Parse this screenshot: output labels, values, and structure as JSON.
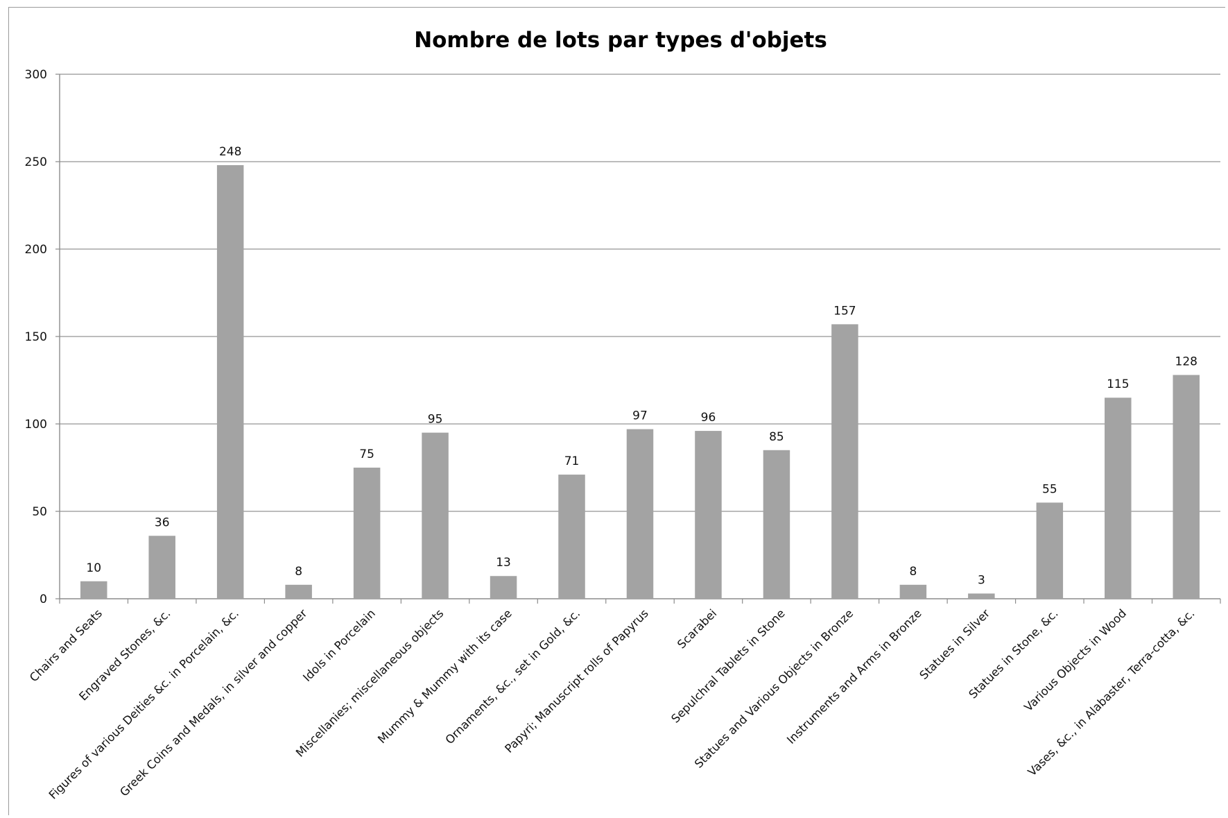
{
  "chart_data": {
    "type": "bar",
    "title": "Nombre de lots par types d'objets",
    "xlabel": "",
    "ylabel": "",
    "ylim": [
      0,
      300
    ],
    "yticks": [
      0,
      50,
      100,
      150,
      200,
      250,
      300
    ],
    "grid": true,
    "legend": "none",
    "bar_color": "#a3a3a3",
    "grid_color": "#a6a6a6",
    "categories": [
      "Chairs and Seats",
      "Engraved Stones, &c.",
      "Figures of various Deities &c. in Porcelain, &c.",
      "Greek Coins and Medals, in silver and copper",
      "Idols in Porcelain",
      "Miscellanies; miscellaneous objects",
      "Mummy & Mummy with its case",
      "Ornaments, &c., set in Gold, &c.",
      "Papyri; Manuscript rolls of Papyrus",
      "Scarabei",
      "Sepulchral Tablets in Stone",
      "Statues and Various Objects in Bronze",
      "Instruments and Arms in Bronze",
      "Statues in Silver",
      "Statues in  Stone, &c.",
      "Various Objects in Wood",
      "Vases, &c., in Alabaster, Terra-cotta, &c."
    ],
    "values": [
      10,
      36,
      248,
      8,
      75,
      95,
      13,
      71,
      97,
      96,
      85,
      157,
      8,
      3,
      55,
      115,
      128
    ]
  }
}
